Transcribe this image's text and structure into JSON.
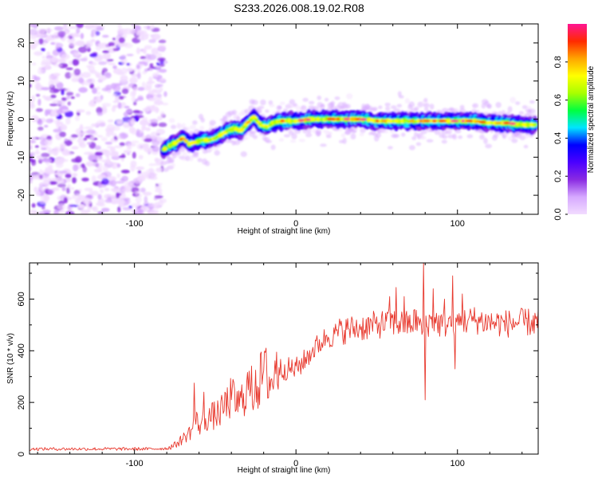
{
  "title": "S233.2026.008.19.02.R08",
  "colors": {
    "axes": "#000000",
    "snr_line": "#e8392e",
    "background": "#ffffff"
  },
  "chart_data": [
    {
      "type": "heatmap",
      "xlabel": "Height of straight line (km)",
      "ylabel": "Frequency (Hz)",
      "xlim": [
        -165,
        150
      ],
      "ylim": [
        -25,
        25
      ],
      "xticks": [
        -100,
        0,
        100
      ],
      "yticks": [
        -20,
        -10,
        0,
        10,
        20
      ],
      "grid": false,
      "colorbar": {
        "label": "Normalized spectral amplitude",
        "range": [
          0,
          1
        ],
        "ticks": [
          "0.0",
          "0.2",
          "0.4",
          "0.6",
          "0.8"
        ],
        "colormap": [
          "#f2dcff",
          "#d6a9ff",
          "#8a2be2",
          "#4b00ff",
          "#0000ff",
          "#00e5ff",
          "#00ff40",
          "#a8ff00",
          "#ffff00",
          "#ffa500",
          "#ff2a00",
          "#ff1493"
        ]
      },
      "noise_region_x": [
        -165,
        -82
      ],
      "ridge": {
        "x": [
          -82,
          -78,
          -74,
          -70,
          -66,
          -62,
          -58,
          -54,
          -50,
          -46,
          -42,
          -38,
          -34,
          -30,
          -26,
          -22,
          -18,
          -14,
          -10,
          -6,
          -2,
          0,
          10,
          20,
          30,
          40,
          50,
          60,
          70,
          80,
          90,
          100,
          110,
          120,
          130,
          140,
          148
        ],
        "frequency": [
          -8,
          -7,
          -6,
          -5,
          -6.5,
          -6,
          -5.5,
          -5.5,
          -5,
          -4,
          -3,
          -2.5,
          -3,
          -1,
          0.5,
          -1.5,
          -2,
          -1,
          -0.5,
          -0.5,
          -0.5,
          -0.5,
          0,
          0,
          0,
          0,
          -0.5,
          -0.5,
          -0.5,
          -0.5,
          -0.5,
          -0.5,
          -0.5,
          -1,
          -1,
          -1.5,
          -1.5
        ]
      }
    },
    {
      "type": "line",
      "xlabel": "Height of straight line (km)",
      "ylabel": "SNR (10 * v/v)",
      "xlim": [
        -165,
        150
      ],
      "ylim": [
        0,
        740
      ],
      "xticks": [
        -100,
        0,
        100
      ],
      "yticks": [
        0,
        200,
        400,
        600
      ],
      "grid": false,
      "series": [
        {
          "x": [
            -165,
            -150,
            -130,
            -110,
            -90,
            -80,
            -75,
            -70,
            -65,
            -62,
            -60,
            -55,
            -50,
            -45,
            -40,
            -35,
            -30,
            -25,
            -20,
            -15,
            -10,
            -5,
            0,
            5,
            10,
            15,
            20,
            25,
            30,
            40,
            50,
            60,
            70,
            75,
            78,
            80,
            85,
            90,
            95,
            100,
            110,
            120,
            130,
            140,
            150
          ],
          "y": [
            20,
            20,
            20,
            20,
            20,
            22,
            35,
            60,
            90,
            130,
            110,
            140,
            150,
            170,
            220,
            190,
            260,
            240,
            320,
            280,
            330,
            330,
            330,
            360,
            400,
            430,
            460,
            470,
            480,
            490,
            500,
            510,
            500,
            520,
            480,
            500,
            520,
            500,
            510,
            510,
            520,
            510,
            505,
            510,
            510
          ],
          "spikes": [
            {
              "x": -63,
              "y": 275
            },
            {
              "x": -57,
              "y": 240
            },
            {
              "x": -44,
              "y": 240
            },
            {
              "x": -25,
              "y": 325
            },
            {
              "x": -12,
              "y": 395
            },
            {
              "x": 24,
              "y": 465
            },
            {
              "x": 58,
              "y": 610
            },
            {
              "x": 62,
              "y": 645
            },
            {
              "x": 67,
              "y": 610
            },
            {
              "x": 79,
              "y": 740
            },
            {
              "x": 79.8,
              "y": 210
            },
            {
              "x": 85,
              "y": 640
            },
            {
              "x": 92,
              "y": 600
            },
            {
              "x": 97,
              "y": 690
            },
            {
              "x": 98.5,
              "y": 330
            },
            {
              "x": 103,
              "y": 620
            }
          ]
        }
      ]
    }
  ]
}
